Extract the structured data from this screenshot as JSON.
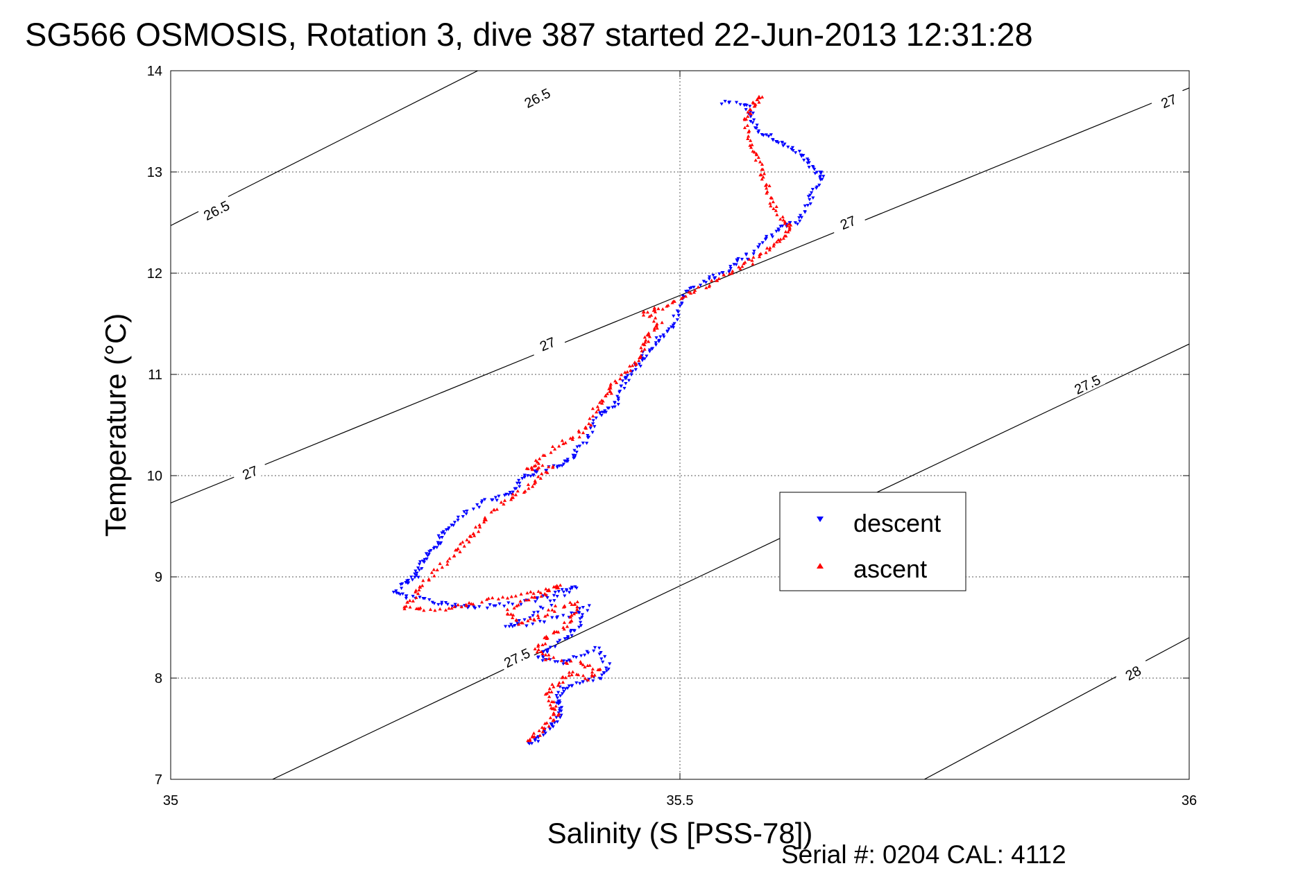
{
  "title": "SG566 OSMOSIS, Rotation 3, dive 387 started 22-Jun-2013 12:31:28",
  "footer": "Serial #: 0204  CAL: 4112",
  "colors": {
    "descent": "#0000ff",
    "ascent": "#ff0000",
    "axes": "#000000"
  },
  "chart_data": {
    "type": "scatter",
    "xlabel": "Salinity (S [PSS-78])",
    "ylabel": "Temperature (°C)",
    "xlim": [
      35,
      36
    ],
    "ylim": [
      7,
      14
    ],
    "xticks": [
      "35",
      "35.5",
      "36"
    ],
    "yticks": [
      "7",
      "8",
      "9",
      "10",
      "11",
      "12",
      "13",
      "14"
    ],
    "grid": true,
    "legend_position": "center-right",
    "legend": [
      "descent",
      "ascent"
    ],
    "contours": [
      {
        "label": "26.5",
        "points": [
          [
            35,
            12.47
          ],
          [
            35.4,
            14.5
          ]
        ],
        "labels_at": [
          [
            35.045,
            12.62
          ],
          [
            35.36,
            13.73
          ]
        ]
      },
      {
        "label": "27",
        "points": [
          [
            35,
            9.73
          ],
          [
            36,
            13.83
          ]
        ],
        "labels_at": [
          [
            35.078,
            10.03
          ],
          [
            35.37,
            11.3
          ],
          [
            35.665,
            12.5
          ],
          [
            35.98,
            13.7
          ]
        ]
      },
      {
        "label": "27.5",
        "points": [
          [
            35.1,
            7
          ],
          [
            36,
            11.3
          ]
        ],
        "labels_at": [
          [
            35.34,
            8.2
          ],
          [
            35.9,
            10.9
          ]
        ]
      },
      {
        "label": "28",
        "points": [
          [
            35.74,
            7
          ],
          [
            36,
            8.4
          ]
        ],
        "labels_at": [
          [
            35.945,
            8.05
          ]
        ]
      }
    ],
    "series": [
      {
        "name": "descent",
        "marker": "triangle-down",
        "path": [
          [
            35.54,
            13.68
          ],
          [
            35.565,
            13.67
          ],
          [
            35.57,
            13.55
          ],
          [
            35.575,
            13.4
          ],
          [
            35.59,
            13.35
          ],
          [
            35.6,
            13.28
          ],
          [
            35.615,
            13.2
          ],
          [
            35.625,
            13.1
          ],
          [
            35.635,
            13.0
          ],
          [
            35.64,
            12.95
          ],
          [
            35.63,
            12.8
          ],
          [
            35.625,
            12.65
          ],
          [
            35.615,
            12.5
          ],
          [
            35.6,
            12.45
          ],
          [
            35.585,
            12.35
          ],
          [
            35.57,
            12.2
          ],
          [
            35.555,
            12.1
          ],
          [
            35.545,
            12.0
          ],
          [
            35.53,
            11.95
          ],
          [
            35.51,
            11.85
          ],
          [
            35.5,
            11.7
          ],
          [
            35.495,
            11.5
          ],
          [
            35.485,
            11.4
          ],
          [
            35.475,
            11.3
          ],
          [
            35.465,
            11.2
          ],
          [
            35.46,
            11.1
          ],
          [
            35.45,
            11.0
          ],
          [
            35.445,
            10.9
          ],
          [
            35.44,
            10.75
          ],
          [
            35.43,
            10.65
          ],
          [
            35.42,
            10.6
          ],
          [
            35.41,
            10.4
          ],
          [
            35.4,
            10.25
          ],
          [
            35.39,
            10.15
          ],
          [
            35.38,
            10.1
          ],
          [
            35.36,
            10.05
          ],
          [
            35.35,
            10.0
          ],
          [
            35.34,
            9.9
          ],
          [
            35.33,
            9.8
          ],
          [
            35.31,
            9.75
          ],
          [
            35.29,
            9.65
          ],
          [
            35.275,
            9.5
          ],
          [
            35.265,
            9.4
          ],
          [
            35.26,
            9.3
          ],
          [
            35.25,
            9.2
          ],
          [
            35.245,
            9.1
          ],
          [
            35.24,
            9.0
          ],
          [
            35.23,
            8.95
          ],
          [
            35.22,
            8.85
          ],
          [
            35.235,
            8.8
          ],
          [
            35.26,
            8.75
          ],
          [
            35.28,
            8.72
          ],
          [
            35.3,
            8.7
          ],
          [
            35.33,
            8.72
          ],
          [
            35.36,
            8.78
          ],
          [
            35.38,
            8.85
          ],
          [
            35.4,
            8.92
          ],
          [
            35.375,
            8.75
          ],
          [
            35.35,
            8.6
          ],
          [
            35.33,
            8.5
          ],
          [
            35.36,
            8.55
          ],
          [
            35.39,
            8.62
          ],
          [
            35.41,
            8.7
          ],
          [
            35.4,
            8.5
          ],
          [
            35.39,
            8.4
          ],
          [
            35.37,
            8.3
          ],
          [
            35.36,
            8.2
          ],
          [
            35.38,
            8.15
          ],
          [
            35.4,
            8.2
          ],
          [
            35.42,
            8.3
          ],
          [
            35.43,
            8.1
          ],
          [
            35.42,
            8.0
          ],
          [
            35.4,
            7.95
          ],
          [
            35.385,
            7.9
          ],
          [
            35.38,
            7.8
          ],
          [
            35.385,
            7.7
          ],
          [
            35.38,
            7.6
          ],
          [
            35.37,
            7.5
          ],
          [
            35.36,
            7.4
          ],
          [
            35.35,
            7.35
          ]
        ]
      },
      {
        "name": "ascent",
        "marker": "triangle-up",
        "path": [
          [
            35.35,
            7.38
          ],
          [
            35.36,
            7.45
          ],
          [
            35.37,
            7.55
          ],
          [
            35.38,
            7.65
          ],
          [
            35.375,
            7.72
          ],
          [
            35.37,
            7.85
          ],
          [
            35.38,
            7.95
          ],
          [
            35.39,
            8.05
          ],
          [
            35.41,
            8.0
          ],
          [
            35.42,
            8.1
          ],
          [
            35.4,
            8.15
          ],
          [
            35.37,
            8.2
          ],
          [
            35.36,
            8.3
          ],
          [
            35.37,
            8.4
          ],
          [
            35.385,
            8.5
          ],
          [
            35.395,
            8.6
          ],
          [
            35.4,
            8.75
          ],
          [
            35.38,
            8.7
          ],
          [
            35.36,
            8.6
          ],
          [
            35.34,
            8.55
          ],
          [
            35.33,
            8.65
          ],
          [
            35.35,
            8.78
          ],
          [
            35.37,
            8.85
          ],
          [
            35.385,
            8.92
          ],
          [
            35.36,
            8.85
          ],
          [
            35.33,
            8.8
          ],
          [
            35.3,
            8.75
          ],
          [
            35.28,
            8.7
          ],
          [
            35.25,
            8.68
          ],
          [
            35.23,
            8.7
          ],
          [
            35.24,
            8.82
          ],
          [
            35.25,
            8.95
          ],
          [
            35.265,
            9.1
          ],
          [
            35.28,
            9.25
          ],
          [
            35.29,
            9.35
          ],
          [
            35.3,
            9.45
          ],
          [
            35.31,
            9.6
          ],
          [
            35.33,
            9.75
          ],
          [
            35.345,
            9.85
          ],
          [
            35.36,
            9.95
          ],
          [
            35.375,
            10.1
          ],
          [
            35.35,
            10.05
          ],
          [
            35.36,
            10.15
          ],
          [
            35.38,
            10.3
          ],
          [
            35.4,
            10.4
          ],
          [
            35.41,
            10.5
          ],
          [
            35.42,
            10.7
          ],
          [
            35.43,
            10.8
          ],
          [
            35.435,
            10.9
          ],
          [
            35.45,
            11.05
          ],
          [
            35.46,
            11.15
          ],
          [
            35.465,
            11.3
          ],
          [
            35.47,
            11.4
          ],
          [
            35.48,
            11.5
          ],
          [
            35.465,
            11.6
          ],
          [
            35.48,
            11.65
          ],
          [
            35.5,
            11.75
          ],
          [
            35.52,
            11.85
          ],
          [
            35.54,
            11.95
          ],
          [
            35.56,
            12.05
          ],
          [
            35.575,
            12.15
          ],
          [
            35.59,
            12.25
          ],
          [
            35.6,
            12.35
          ],
          [
            35.61,
            12.45
          ],
          [
            35.6,
            12.55
          ],
          [
            35.59,
            12.7
          ],
          [
            35.585,
            12.85
          ],
          [
            35.58,
            13.0
          ],
          [
            35.575,
            13.15
          ],
          [
            35.57,
            13.3
          ],
          [
            35.565,
            13.5
          ],
          [
            35.57,
            13.6
          ],
          [
            35.575,
            13.7
          ],
          [
            35.58,
            13.75
          ]
        ]
      }
    ]
  }
}
